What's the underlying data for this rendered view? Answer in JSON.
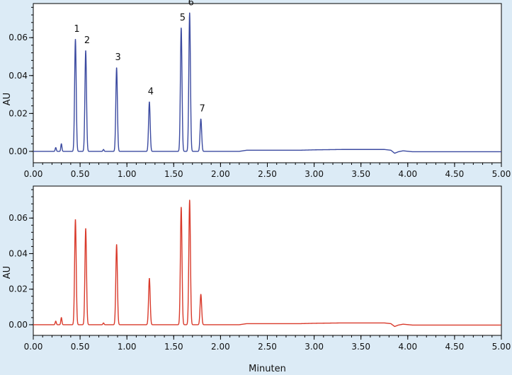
{
  "colors": {
    "background": "#dcebf6",
    "plot_bg": "#ffffff",
    "top_trace": "#3b4aa0",
    "bottom_trace": "#d93a2b"
  },
  "chart_data": [
    {
      "type": "line",
      "xlabel": "Minuten",
      "ylabel": "AU",
      "xlim": [
        0,
        5
      ],
      "ylim": [
        -0.006,
        0.078
      ],
      "xticks": [
        "0.00",
        "0.50",
        "1.00",
        "1.50",
        "2.00",
        "2.50",
        "3.00",
        "3.50",
        "4.00",
        "4.50",
        "5.00"
      ],
      "yticks": [
        "0.00",
        "0.02",
        "0.04",
        "0.06"
      ],
      "grid": false,
      "series": [
        {
          "color": "#3b4aa0",
          "peaks": [
            {
              "label": "1",
              "x": 0.45,
              "y": 0.059
            },
            {
              "label": "2",
              "x": 0.56,
              "y": 0.053
            },
            {
              "label": "3",
              "x": 0.89,
              "y": 0.044
            },
            {
              "label": "4",
              "x": 1.24,
              "y": 0.026
            },
            {
              "label": "5",
              "x": 1.58,
              "y": 0.065
            },
            {
              "label": "6",
              "x": 1.67,
              "y": 0.073
            },
            {
              "label": "7",
              "x": 1.79,
              "y": 0.017
            }
          ],
          "minor_peaks": [
            {
              "x": 0.24,
              "y": 0.002
            },
            {
              "x": 0.3,
              "y": 0.004
            },
            {
              "x": 0.75,
              "y": 0.001
            }
          ]
        }
      ]
    },
    {
      "type": "line",
      "xlabel": "Minuten",
      "ylabel": "AU",
      "xlim": [
        0,
        5
      ],
      "ylim": [
        -0.006,
        0.078
      ],
      "xticks": [
        "0.00",
        "0.50",
        "1.00",
        "1.50",
        "2.00",
        "2.50",
        "3.00",
        "3.50",
        "4.00",
        "4.50",
        "5.00"
      ],
      "yticks": [
        "0.00",
        "0.02",
        "0.04",
        "0.06"
      ],
      "grid": false,
      "series": [
        {
          "color": "#d93a2b",
          "peaks": [
            {
              "x": 0.45,
              "y": 0.059
            },
            {
              "x": 0.56,
              "y": 0.054
            },
            {
              "x": 0.89,
              "y": 0.045
            },
            {
              "x": 1.24,
              "y": 0.026
            },
            {
              "x": 1.58,
              "y": 0.066
            },
            {
              "x": 1.67,
              "y": 0.07
            },
            {
              "x": 1.79,
              "y": 0.017
            }
          ],
          "minor_peaks": [
            {
              "x": 0.24,
              "y": 0.002
            },
            {
              "x": 0.3,
              "y": 0.004
            },
            {
              "x": 0.75,
              "y": 0.001
            }
          ]
        }
      ]
    }
  ]
}
